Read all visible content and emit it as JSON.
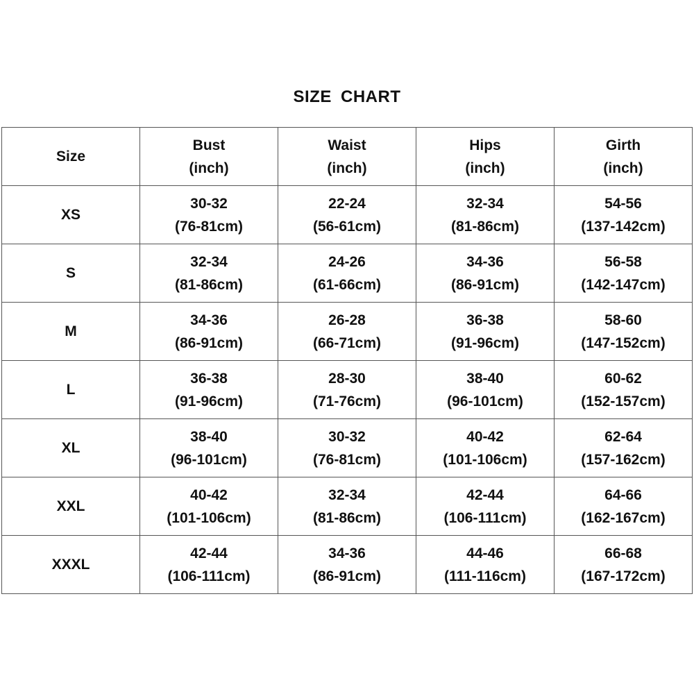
{
  "title": "SIZE  CHART",
  "headers": [
    {
      "line1": "Size",
      "line2": ""
    },
    {
      "line1": "Bust",
      "line2": "(inch)"
    },
    {
      "line1": "Waist",
      "line2": "(inch)"
    },
    {
      "line1": "Hips",
      "line2": "(inch)"
    },
    {
      "line1": "Girth",
      "line2": "(inch)"
    }
  ],
  "rows": [
    {
      "size": "XS",
      "cells": [
        [
          "30-32",
          "(76-81cm)"
        ],
        [
          "22-24",
          "(56-61cm)"
        ],
        [
          "32-34",
          "(81-86cm)"
        ],
        [
          "54-56",
          "(137-142cm)"
        ]
      ]
    },
    {
      "size": "S",
      "cells": [
        [
          "32-34",
          "(81-86cm)"
        ],
        [
          "24-26",
          "(61-66cm)"
        ],
        [
          "34-36",
          "(86-91cm)"
        ],
        [
          "56-58",
          "(142-147cm)"
        ]
      ]
    },
    {
      "size": "M",
      "cells": [
        [
          "34-36",
          "(86-91cm)"
        ],
        [
          "26-28",
          "(66-71cm)"
        ],
        [
          "36-38",
          "(91-96cm)"
        ],
        [
          "58-60",
          "(147-152cm)"
        ]
      ]
    },
    {
      "size": "L",
      "cells": [
        [
          "36-38",
          "(91-96cm)"
        ],
        [
          "28-30",
          "(71-76cm)"
        ],
        [
          "38-40",
          "(96-101cm)"
        ],
        [
          "60-62",
          "(152-157cm)"
        ]
      ]
    },
    {
      "size": "XL",
      "cells": [
        [
          "38-40",
          "(96-101cm)"
        ],
        [
          "30-32",
          "(76-81cm)"
        ],
        [
          "40-42",
          "(101-106cm)"
        ],
        [
          "62-64",
          "(157-162cm)"
        ]
      ]
    },
    {
      "size": "XXL",
      "cells": [
        [
          "40-42",
          "(101-106cm)"
        ],
        [
          "32-34",
          "(81-86cm)"
        ],
        [
          "42-44",
          "(106-111cm)"
        ],
        [
          "64-66",
          "(162-167cm)"
        ]
      ]
    },
    {
      "size": "XXXL",
      "cells": [
        [
          "42-44",
          "(106-111cm)"
        ],
        [
          "34-36",
          "(86-91cm)"
        ],
        [
          "44-46",
          "(111-116cm)"
        ],
        [
          "66-68",
          "(167-172cm)"
        ]
      ]
    }
  ]
}
